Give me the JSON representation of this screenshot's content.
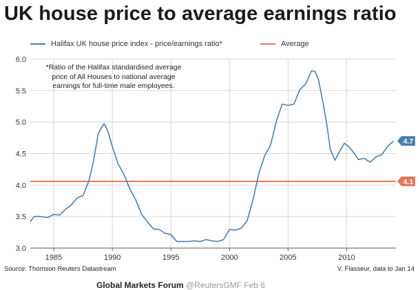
{
  "header": {
    "title": "UK house price to average earnings ratio"
  },
  "legend": {
    "series_label": "Halifax UK house price index - price/earnings ratio*",
    "average_label": "Average"
  },
  "note": "*Ratio of the Halifax standardised average price of All Houses to national average earnings for full-time male employees.",
  "footer": {
    "source": "Source: Thomson Reuters Datastream",
    "credit": "V. Flasseur, data to Jan 14",
    "forum": "Global Markets Forum",
    "handle": "@ReutersGMF   Feb 6"
  },
  "colors": {
    "series": "#4a7fb0",
    "average": "#e8735a",
    "grid": "#d8d8d8"
  },
  "chart_data": {
    "type": "line",
    "title": "UK house price to average earnings ratio",
    "xlabel": "",
    "ylabel": "",
    "xlim": [
      1983,
      2014.2
    ],
    "ylim": [
      3.0,
      6.0
    ],
    "x_ticks": [
      "1985",
      "1990",
      "1995",
      "2000",
      "2005",
      "2010"
    ],
    "y_ticks": [
      "3.0",
      "3.5",
      "4.0",
      "4.5",
      "5.0",
      "5.5",
      "6.0"
    ],
    "grid": true,
    "legend_position": "top",
    "series": [
      {
        "name": "Halifax UK house price index - price/earnings ratio*",
        "x": [
          1983.0,
          1983.3,
          1983.6,
          1984.0,
          1984.5,
          1985.0,
          1985.5,
          1986.0,
          1986.5,
          1987.0,
          1987.5,
          1988.0,
          1988.4,
          1988.8,
          1989.0,
          1989.3,
          1989.6,
          1990.0,
          1990.5,
          1991.0,
          1991.5,
          1992.0,
          1992.5,
          1993.0,
          1993.5,
          1994.0,
          1994.5,
          1995.0,
          1995.5,
          1996.0,
          1996.5,
          1997.0,
          1997.5,
          1998.0,
          1998.5,
          1999.0,
          1999.5,
          2000.0,
          2000.5,
          2001.0,
          2001.5,
          2002.0,
          2002.5,
          2003.0,
          2003.5,
          2004.0,
          2004.5,
          2005.0,
          2005.5,
          2006.0,
          2006.5,
          2007.0,
          2007.3,
          2007.6,
          2008.0,
          2008.3,
          2008.6,
          2009.0,
          2009.4,
          2009.8,
          2010.2,
          2010.6,
          2011.0,
          2011.5,
          2012.0,
          2012.5,
          2013.0,
          2013.5,
          2014.0
        ],
        "values": [
          3.42,
          3.48,
          3.52,
          3.48,
          3.5,
          3.52,
          3.54,
          3.6,
          3.7,
          3.78,
          3.85,
          4.05,
          4.4,
          4.8,
          4.9,
          4.96,
          4.88,
          4.6,
          4.35,
          4.15,
          3.95,
          3.75,
          3.55,
          3.4,
          3.32,
          3.28,
          3.25,
          3.2,
          3.12,
          3.09,
          3.12,
          3.1,
          3.12,
          3.12,
          3.13,
          3.09,
          3.15,
          3.28,
          3.3,
          3.3,
          3.45,
          3.75,
          4.2,
          4.45,
          4.65,
          5.0,
          5.3,
          5.25,
          5.3,
          5.5,
          5.62,
          5.8,
          5.82,
          5.65,
          5.3,
          4.95,
          4.58,
          4.38,
          4.55,
          4.65,
          4.62,
          4.5,
          4.42,
          4.41,
          4.38,
          4.43,
          4.5,
          4.6,
          4.7
        ]
      },
      {
        "name": "Average",
        "x": [
          1983.0,
          2014.2
        ],
        "values": [
          4.06,
          4.06
        ]
      }
    ],
    "annotations": [
      {
        "label": "4.7",
        "series": "Halifax UK house price index - price/earnings ratio*",
        "value": 4.7
      },
      {
        "label": "4.1",
        "series": "Average",
        "value": 4.06
      }
    ]
  }
}
